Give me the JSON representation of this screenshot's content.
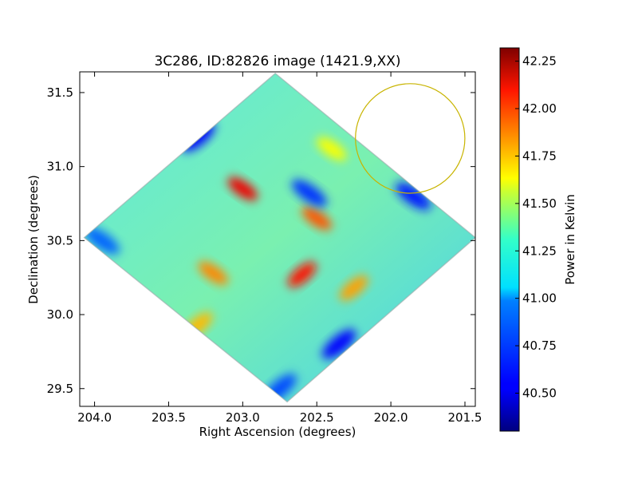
{
  "chart_data": {
    "type": "heatmap",
    "title": "3C286, ID:82826 image (1421.9,XX)",
    "xlabel": "Right Ascension (degrees)",
    "ylabel": "Declination (degrees)",
    "xlim": [
      204.1,
      201.43
    ],
    "ylim": [
      29.38,
      31.64
    ],
    "xticks": [
      {
        "value": 204.0,
        "label": "204.0"
      },
      {
        "value": 203.5,
        "label": "203.5"
      },
      {
        "value": 203.0,
        "label": "203.0"
      },
      {
        "value": 202.5,
        "label": "202.5"
      },
      {
        "value": 202.0,
        "label": "202.0"
      },
      {
        "value": 201.5,
        "label": "201.5"
      }
    ],
    "yticks": [
      {
        "value": 29.5,
        "label": "29.5"
      },
      {
        "value": 30.0,
        "label": "30.0"
      },
      {
        "value": 30.5,
        "label": "30.5"
      },
      {
        "value": 31.0,
        "label": "31.0"
      },
      {
        "value": 31.5,
        "label": "31.5"
      }
    ],
    "colorbar": {
      "label": "Power in Kelvin",
      "colormap": "jet",
      "range": [
        40.3,
        42.32
      ],
      "ticks": [
        {
          "value": 40.5,
          "label": "40.50"
        },
        {
          "value": 40.75,
          "label": "40.75"
        },
        {
          "value": 41.0,
          "label": "41.00"
        },
        {
          "value": 41.25,
          "label": "41.25"
        },
        {
          "value": 41.5,
          "label": "41.50"
        },
        {
          "value": 41.75,
          "label": "41.75"
        },
        {
          "value": 42.0,
          "label": "42.00"
        },
        {
          "value": 42.25,
          "label": "42.25"
        }
      ]
    },
    "map_footprint": [
      {
        "ra": 202.78,
        "dec": 31.63
      },
      {
        "ra": 201.43,
        "dec": 30.52
      },
      {
        "ra": 202.7,
        "dec": 29.41
      },
      {
        "ra": 204.07,
        "dec": 30.52
      }
    ],
    "features": [
      {
        "kind": "hot",
        "ra": 203.0,
        "dec": 30.85,
        "value": 42.1
      },
      {
        "kind": "hot",
        "ra": 202.6,
        "dec": 30.27,
        "value": 42.05
      },
      {
        "kind": "hot",
        "ra": 202.5,
        "dec": 30.65,
        "value": 41.9
      },
      {
        "kind": "hot",
        "ra": 202.25,
        "dec": 30.18,
        "value": 41.75
      },
      {
        "kind": "hot",
        "ra": 203.2,
        "dec": 30.28,
        "value": 41.8
      },
      {
        "kind": "hot",
        "ra": 203.3,
        "dec": 29.93,
        "value": 41.7
      },
      {
        "kind": "hot",
        "ra": 202.4,
        "dec": 31.12,
        "value": 41.55
      },
      {
        "kind": "cold",
        "ra": 203.3,
        "dec": 31.2,
        "value": 40.55
      },
      {
        "kind": "cold",
        "ra": 202.55,
        "dec": 30.82,
        "value": 40.65
      },
      {
        "kind": "cold",
        "ra": 202.35,
        "dec": 29.8,
        "value": 40.55
      },
      {
        "kind": "cold",
        "ra": 201.85,
        "dec": 30.8,
        "value": 40.6
      },
      {
        "kind": "cold",
        "ra": 202.75,
        "dec": 29.5,
        "value": 40.7
      },
      {
        "kind": "cold",
        "ra": 203.95,
        "dec": 30.5,
        "value": 40.75
      }
    ],
    "circle": {
      "ra": 201.87,
      "dec": 31.19,
      "radius_deg": 0.37,
      "color": "#c8b400"
    }
  }
}
